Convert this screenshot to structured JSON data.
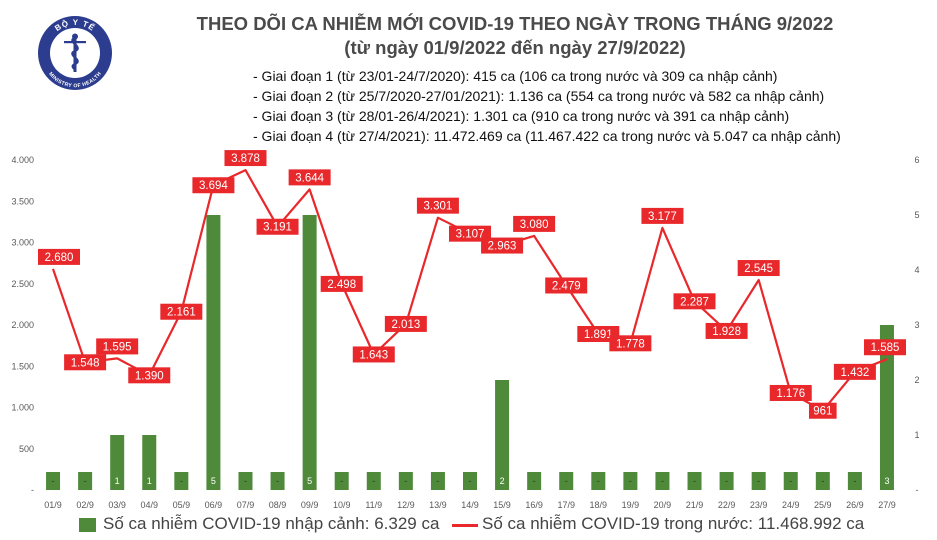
{
  "logo": {
    "top_text": "BỘ Y TẾ",
    "bottom_text": "MINISTRY OF HEALTH",
    "color": "#2c3d8f"
  },
  "header": {
    "title_line1": "THEO DÕI CA NHIỄM MỚI COVID-19 THEO NGÀY TRONG THÁNG 9/2022",
    "title_line2": "(từ ngày 01/9/2022 đến ngày 27/9/2022)"
  },
  "notes": [
    "- Giai đoạn 1 (từ 23/01-24/7/2020): 415 ca (106 ca trong nước và 309 ca nhập cảnh)",
    "- Giai đoạn 2 (từ 25/7/2020-27/01/2021): 1.136 ca (554 ca trong nước và 582 ca nhập cảnh)",
    "- Giai đoạn 3 (từ 28/01-26/4/2021): 1.301 ca (910 ca trong nước và 391 ca nhập cảnh)",
    "- Giai đoạn 4 (từ 27/4/2021): 11.472.469 ca (11.467.422 ca trong nước và 5.047 ca nhập cảnh)"
  ],
  "legend": {
    "bar_label": "Số ca nhiễm COVID-19 nhập cảnh: 6.329 ca",
    "line_label": "Số ca nhiễm COVID-19 trong nước: 11.468.992 ca"
  },
  "colors": {
    "bar": "#4e8a39",
    "line": "#e8282b",
    "label_bg": "#e8282b",
    "grid": "#d9d9d9",
    "text": "#595959"
  },
  "chart_data": {
    "type": "bar+line",
    "categories": [
      "01/9",
      "02/9",
      "03/9",
      "04/9",
      "05/9",
      "06/9",
      "07/9",
      "08/9",
      "09/9",
      "10/9",
      "11/9",
      "12/9",
      "13/9",
      "14/9",
      "15/9",
      "16/9",
      "17/9",
      "18/9",
      "19/9",
      "20/9",
      "21/9",
      "22/9",
      "23/9",
      "24/9",
      "25/9",
      "26/9",
      "27/9"
    ],
    "left_axis": {
      "ylim": [
        0,
        4000
      ],
      "ticks": [
        0,
        500,
        1000,
        1500,
        2000,
        2500,
        3000,
        3500,
        4000
      ],
      "tick_labels": [
        "-",
        "500",
        "1.000",
        "1.500",
        "2.000",
        "2.500",
        "3.000",
        "3.500",
        "4.000"
      ]
    },
    "right_axis": {
      "ylim": [
        0,
        6
      ],
      "ticks": [
        0,
        1,
        2,
        3,
        4,
        5,
        6
      ],
      "tick_labels": [
        "-",
        "1",
        "2",
        "3",
        "4",
        "5",
        "6"
      ]
    },
    "series": [
      {
        "name": "Số ca nhiễm COVID-19 nhập cảnh",
        "type": "bar",
        "axis": "right",
        "values": [
          0,
          0,
          1,
          1,
          0,
          5,
          0,
          0,
          5,
          0,
          0,
          0,
          0,
          0,
          2,
          0,
          0,
          0,
          0,
          0,
          0,
          0,
          0,
          0,
          0,
          0,
          3
        ],
        "value_labels": [
          "-",
          "-",
          "1",
          "1",
          "-",
          "5",
          "-",
          "-",
          "5",
          "-",
          "-",
          "-",
          "-",
          "-",
          "2",
          "-",
          "-",
          "-",
          "-",
          "-",
          "-",
          "-",
          "-",
          "-",
          "-",
          "-",
          "3"
        ]
      },
      {
        "name": "Số ca nhiễm COVID-19 trong nước",
        "type": "line",
        "axis": "left",
        "values": [
          2680,
          1548,
          1595,
          1390,
          2161,
          3694,
          3878,
          3191,
          3644,
          2498,
          1643,
          2013,
          3301,
          3107,
          2963,
          3080,
          2479,
          1891,
          1778,
          3177,
          2287,
          1928,
          2545,
          1176,
          961,
          1432,
          1585
        ],
        "value_labels": [
          "2.680",
          "1.548",
          "1.595",
          "1.390",
          "2.161",
          "3.694",
          "3.878",
          "3.191",
          "3.644",
          "2.498",
          "1.643",
          "2.013",
          "3.301",
          "3.107",
          "2.963",
          "3.080",
          "2.479",
          "1.891",
          "1.778",
          "3.177",
          "2.287",
          "1.928",
          "2.545",
          "1.176",
          "961",
          "1.432",
          "1.585"
        ]
      }
    ]
  }
}
